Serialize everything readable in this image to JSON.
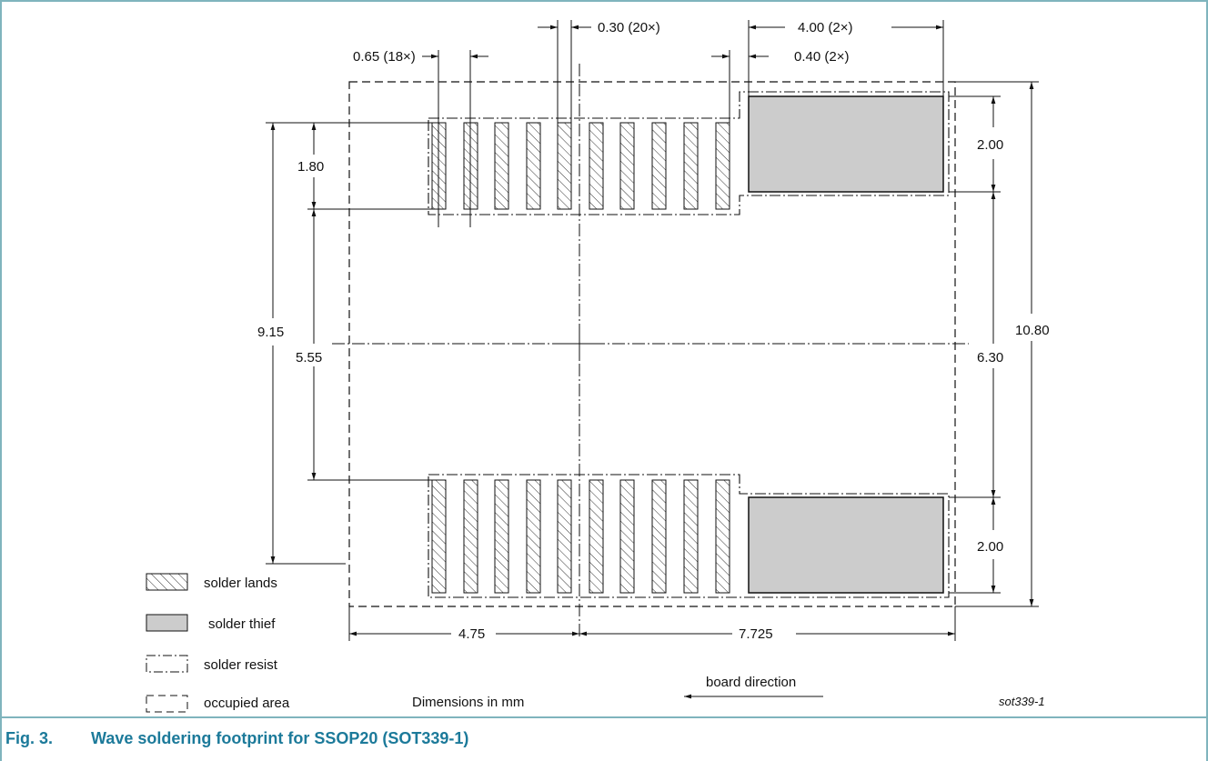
{
  "figure": {
    "number": "Fig. 3.",
    "title": "Wave soldering footprint for SSOP20 (SOT339-1)",
    "code": "sot339-1",
    "units_note": "Dimensions in mm",
    "board_direction": "board direction"
  },
  "dimensions": {
    "pitch": "0.65 (18×)",
    "land_width": "0.30 (20×)",
    "thief_length": "4.00 (2×)",
    "thief_gap": "0.40 (2×)",
    "land_height": "1.80",
    "thief_height_top": "2.00",
    "thief_height_bottom": "2.00",
    "overall_land_span": "9.15",
    "inner_land_gap": "5.55",
    "inner_thief_gap": "6.30",
    "overall_height": "10.80",
    "left_extent": "4.75",
    "right_extent": "7.725"
  },
  "legend": {
    "lands": "solder lands",
    "thief": "solder thief",
    "resist": "solder resist",
    "occupied": "occupied area"
  },
  "colors": {
    "border": "#7fb4bd",
    "caption": "#1c7a9a",
    "thief_fill": "#cccccc"
  }
}
